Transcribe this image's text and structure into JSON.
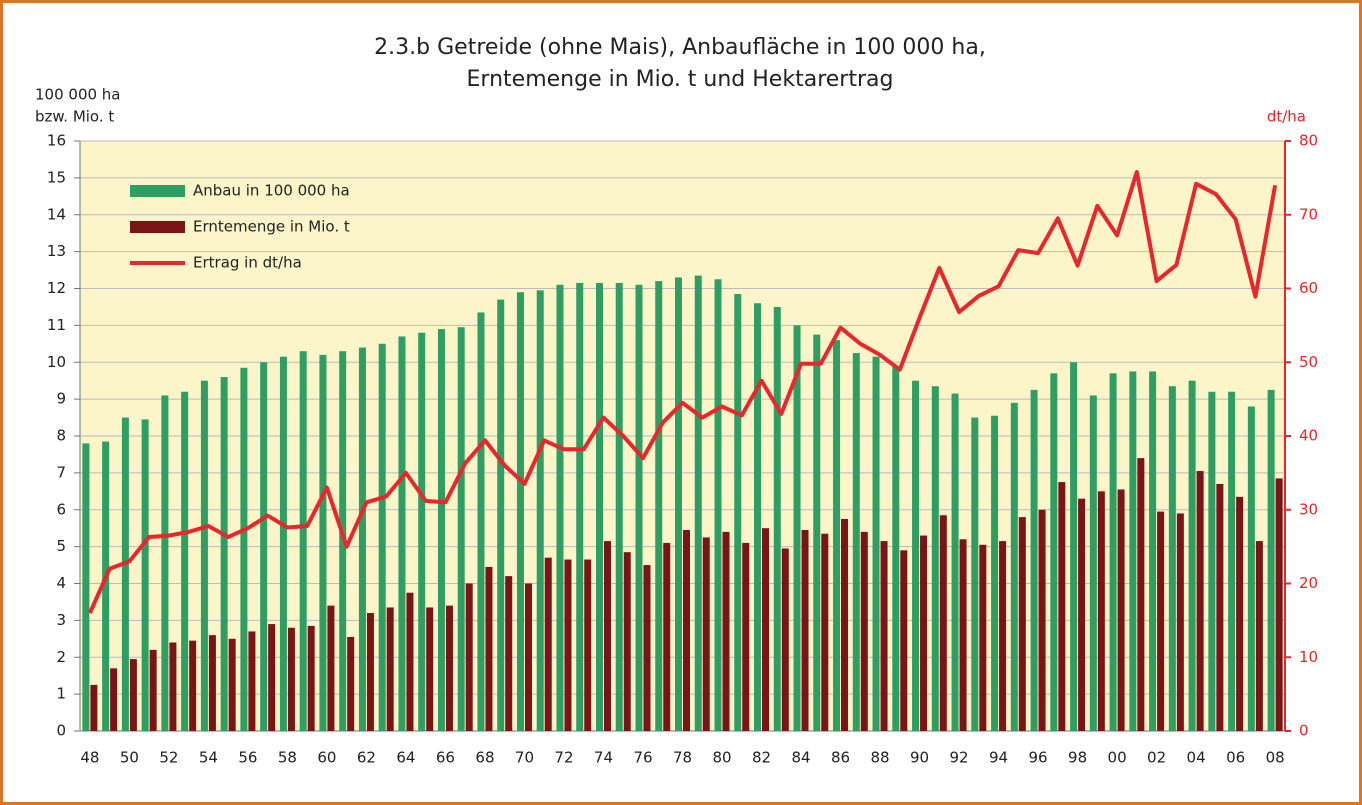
{
  "chart_data": {
    "type": "bar",
    "title_lines": [
      "2.3.b Getreide (ohne Mais), Anbaufläche in 100 000 ha,",
      "Erntemenge in Mio. t und Hektarertrag"
    ],
    "ylabel_lines": [
      "100 000 ha",
      "bzw. Mio. t"
    ],
    "y2label": "dt/ha",
    "categories": [
      "48",
      null,
      "50",
      null,
      "52",
      null,
      "54",
      null,
      "56",
      null,
      "58",
      null,
      "60",
      null,
      "62",
      null,
      "64",
      null,
      "66",
      null,
      "68",
      null,
      "70",
      null,
      "72",
      null,
      "74",
      null,
      "76",
      null,
      "78",
      null,
      "80",
      null,
      "82",
      null,
      "84",
      null,
      "86",
      null,
      "88",
      null,
      "90",
      null,
      "92",
      null,
      "94",
      null,
      "96",
      null,
      "98",
      null,
      "00",
      null,
      "02",
      null,
      "04",
      null,
      "06",
      null,
      "08"
    ],
    "series": [
      {
        "name": "Anbau in 100 000 ha",
        "type": "bar",
        "axis": "y",
        "color": "#2e9e62",
        "values": [
          7.8,
          7.85,
          8.5,
          8.45,
          9.1,
          9.2,
          9.5,
          9.6,
          9.85,
          10.0,
          10.15,
          10.3,
          10.2,
          10.3,
          10.4,
          10.5,
          10.7,
          10.8,
          10.9,
          10.95,
          11.35,
          11.7,
          11.9,
          11.95,
          12.1,
          12.15,
          12.15,
          12.15,
          12.1,
          12.2,
          12.3,
          12.35,
          12.25,
          11.85,
          11.6,
          11.5,
          11.0,
          10.75,
          10.6,
          10.25,
          10.15,
          9.9,
          9.5,
          9.35,
          9.15,
          8.5,
          8.55,
          8.9,
          9.25,
          9.7,
          10.0,
          9.1,
          9.7,
          9.75,
          9.75,
          9.35,
          9.5,
          9.2,
          9.2,
          8.8,
          9.25
        ]
      },
      {
        "name": "Erntemenge in Mio. t",
        "type": "bar",
        "axis": "y",
        "color": "#7a1416",
        "values": [
          1.25,
          1.7,
          1.95,
          2.2,
          2.4,
          2.45,
          2.6,
          2.5,
          2.7,
          2.9,
          2.8,
          2.85,
          3.4,
          2.55,
          3.2,
          3.35,
          3.75,
          3.35,
          3.4,
          4.0,
          4.45,
          4.2,
          4.0,
          4.7,
          4.65,
          4.65,
          5.15,
          4.85,
          4.5,
          5.1,
          5.45,
          5.25,
          5.4,
          5.1,
          5.5,
          4.95,
          5.45,
          5.35,
          5.75,
          5.4,
          5.15,
          4.9,
          5.3,
          5.85,
          5.2,
          5.05,
          5.15,
          5.8,
          6.0,
          6.75,
          6.3,
          6.5,
          6.55,
          7.4,
          5.95,
          5.9,
          7.05,
          6.7,
          6.35,
          5.15,
          6.85
        ]
      },
      {
        "name": "Ertrag in dt/ha",
        "type": "line",
        "axis": "y2",
        "color": "#e8262b",
        "values": [
          16,
          22,
          23,
          26.3,
          26.5,
          27,
          27.8,
          26.3,
          27.5,
          29.2,
          27.6,
          27.8,
          33,
          25,
          31,
          31.8,
          35,
          31.2,
          31,
          36.3,
          39.4,
          36,
          33.5,
          39.4,
          38.2,
          38.2,
          42.5,
          40,
          37,
          41.8,
          44.5,
          42.5,
          44,
          42.8,
          47.5,
          43,
          49.8,
          49.8,
          54.7,
          52.5,
          51,
          49,
          56,
          62.8,
          56.8,
          59,
          60.3,
          65.2,
          64.8,
          69.5,
          63.1,
          71.2,
          67.2,
          75.8,
          61,
          63.2,
          74.2,
          72.8,
          69.4,
          58.9,
          74
        ]
      }
    ],
    "ylim": [
      0,
      16
    ],
    "yticks": [
      0,
      1,
      2,
      3,
      4,
      5,
      6,
      7,
      8,
      9,
      10,
      11,
      12,
      13,
      14,
      15,
      16
    ],
    "y2lim": [
      0,
      80
    ],
    "y2ticks": [
      0,
      10,
      20,
      30,
      40,
      50,
      60,
      70,
      80
    ],
    "grid": true,
    "legend": "upper left",
    "plot_background": "#fbf5c9"
  }
}
